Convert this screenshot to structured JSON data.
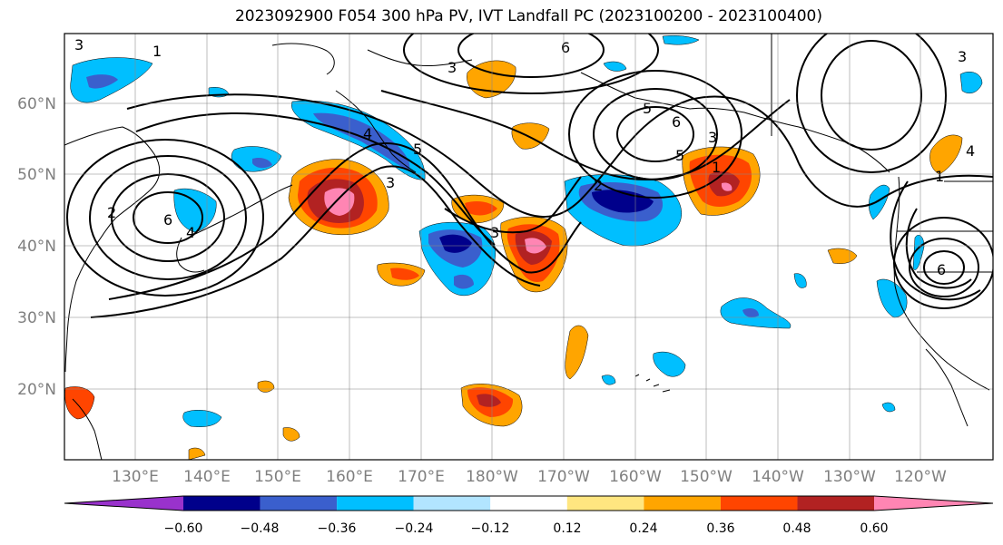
{
  "title": "2023092900 F054 300 hPa PV, IVT Landfall PC (2023100200 - 2023100400)",
  "lon_labels": [
    "130°E",
    "140°E",
    "150°E",
    "160°E",
    "170°E",
    "180°W",
    "170°W",
    "160°W",
    "150°W",
    "140°W",
    "130°W",
    "120°W"
  ],
  "lat_labels": [
    "60°N",
    "50°N",
    "40°N",
    "30°N",
    "20°N"
  ],
  "contour_labels": [
    "3",
    "1",
    "2",
    "6",
    "4",
    "3",
    "4",
    "5",
    "6",
    "3",
    "2",
    "1",
    "3",
    "5",
    "6",
    "5",
    "3",
    "1",
    "6",
    "4",
    "3"
  ],
  "colorbar": {
    "tick_labels": [
      "−0.60",
      "−0.48",
      "−0.36",
      "−0.24",
      "−0.12",
      "0.12",
      "0.24",
      "0.36",
      "0.48",
      "0.60"
    ],
    "colors": [
      "#9932cc",
      "#00008b",
      "#3a5fcd",
      "#00bfff",
      "#b2e5ff",
      "#ffffff",
      "#ffe680",
      "#ffa500",
      "#ff4500",
      "#b22222",
      "#ff85b3"
    ]
  }
}
